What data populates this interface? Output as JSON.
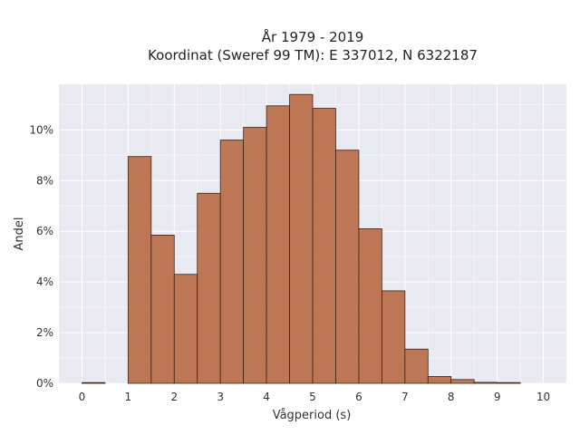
{
  "chart_data": {
    "type": "bar",
    "title": [
      "År 1979 - 2019",
      "Koordinat (Sweref 99 TM): E 337012, N 6322187"
    ],
    "xlabel": "Vågperiod (s)",
    "ylabel": "Andel",
    "xlim": [
      -0.5,
      10.5
    ],
    "ylim": [
      0,
      11.8
    ],
    "x_ticks": [
      0,
      1,
      2,
      3,
      4,
      5,
      6,
      7,
      8,
      9,
      10
    ],
    "y_ticks": [
      0,
      2,
      4,
      6,
      8,
      10
    ],
    "y_tick_labels": [
      "0%",
      "2%",
      "4%",
      "6%",
      "8%",
      "10%"
    ],
    "bin_width": 0.5,
    "bins": [
      {
        "start": 0.0,
        "value": 0.03
      },
      {
        "start": 0.5,
        "value": 0.0
      },
      {
        "start": 1.0,
        "value": 8.95
      },
      {
        "start": 1.5,
        "value": 5.85
      },
      {
        "start": 2.0,
        "value": 4.3
      },
      {
        "start": 2.5,
        "value": 7.5
      },
      {
        "start": 3.0,
        "value": 9.6
      },
      {
        "start": 3.5,
        "value": 10.1
      },
      {
        "start": 4.0,
        "value": 10.95
      },
      {
        "start": 4.5,
        "value": 11.4
      },
      {
        "start": 5.0,
        "value": 10.85
      },
      {
        "start": 5.5,
        "value": 9.2
      },
      {
        "start": 6.0,
        "value": 6.1
      },
      {
        "start": 6.5,
        "value": 3.65
      },
      {
        "start": 7.0,
        "value": 1.35
      },
      {
        "start": 7.5,
        "value": 0.27
      },
      {
        "start": 8.0,
        "value": 0.15
      },
      {
        "start": 8.5,
        "value": 0.04
      },
      {
        "start": 9.0,
        "value": 0.03
      },
      {
        "start": 9.5,
        "value": 0.0
      }
    ],
    "grid": true,
    "colors": {
      "bar": "#b86a42",
      "plot_bg": "#e9e9f1"
    }
  }
}
